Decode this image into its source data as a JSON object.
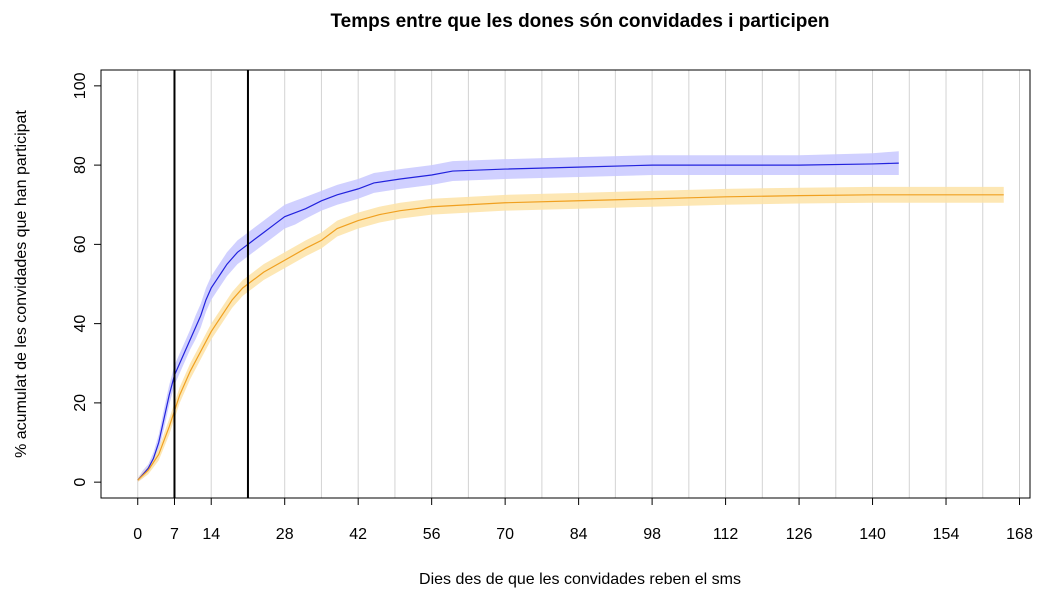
{
  "chart_data": {
    "type": "line",
    "title": "Temps entre que les dones són convidades i participen",
    "x_label": "Dies des de que les convidades reben el sms",
    "y_label": "% acumulat de les convidades que han participat",
    "xlim": [
      -7,
      170
    ],
    "ylim": [
      -4,
      104
    ],
    "xticks": [
      0,
      7,
      14,
      28,
      42,
      56,
      70,
      84,
      98,
      112,
      126,
      140,
      154,
      168
    ],
    "yticks": [
      0,
      20,
      40,
      60,
      80,
      100
    ],
    "xgrid": [
      0,
      7,
      14,
      21,
      28,
      35,
      42,
      49,
      56,
      63,
      70,
      77,
      84,
      91,
      98,
      105,
      112,
      119,
      126,
      133,
      140,
      147,
      154,
      161,
      168
    ],
    "vlines": [
      7,
      21
    ],
    "vline_color": "#000000",
    "grid_color": "#d3d3d3",
    "series": [
      {
        "color": "#2222dd",
        "band_color": "#c8c8ff",
        "x": [
          0,
          1,
          2,
          3,
          4,
          5,
          6,
          7,
          8,
          9,
          10,
          11,
          12,
          13,
          14,
          15,
          16,
          17,
          18,
          19,
          20,
          21,
          22,
          24,
          26,
          28,
          30,
          32,
          35,
          38,
          42,
          45,
          50,
          56,
          60,
          70,
          84,
          98,
          112,
          126,
          140,
          145
        ],
        "values": [
          0.5,
          2,
          3.5,
          6,
          10,
          16,
          22,
          27,
          30,
          33,
          36,
          39,
          42,
          46,
          49,
          51,
          53,
          55,
          56.5,
          58,
          59,
          60,
          61,
          63,
          65,
          67,
          68,
          69,
          71,
          72.5,
          74,
          75.5,
          76.5,
          77.5,
          78.5,
          79,
          79.5,
          80,
          80,
          80,
          80.3,
          80.5
        ],
        "lower": [
          0,
          1,
          2.5,
          4.5,
          8,
          13.5,
          19.5,
          24.5,
          27.5,
          30.5,
          33.5,
          36,
          39,
          43,
          46,
          48,
          50,
          52,
          53.5,
          55,
          56,
          57,
          58,
          60,
          62,
          64,
          65,
          66.5,
          68.5,
          70,
          71.5,
          73,
          74,
          75,
          76,
          76.5,
          77,
          77.5,
          77.5,
          77.5,
          77.5,
          77.5
        ],
        "upper": [
          1,
          3,
          4.5,
          7.5,
          12,
          18.5,
          24.5,
          29.5,
          32.5,
          35.5,
          38.5,
          42,
          45,
          49,
          52,
          54,
          56,
          58,
          59.5,
          61,
          62,
          63,
          64,
          66,
          68,
          70,
          71,
          72,
          73.5,
          75,
          76.5,
          78,
          79,
          80,
          81,
          81.5,
          82,
          82.5,
          82.5,
          82.5,
          83,
          83.5
        ]
      },
      {
        "color": "#f0a020",
        "band_color": "#fde3a7",
        "x": [
          0,
          2,
          4,
          6,
          7,
          8,
          10,
          12,
          14,
          16,
          18,
          20,
          21,
          24,
          28,
          32,
          35,
          38,
          42,
          46,
          50,
          56,
          63,
          70,
          84,
          98,
          112,
          126,
          140,
          165
        ],
        "values": [
          0.5,
          3,
          7,
          14,
          18,
          22,
          28,
          33,
          38,
          42,
          46,
          49,
          50,
          53,
          56,
          59,
          61,
          64,
          66,
          67.5,
          68.5,
          69.5,
          70,
          70.5,
          71,
          71.5,
          72,
          72.3,
          72.5,
          72.5
        ],
        "lower": [
          0,
          2,
          5.5,
          12,
          16,
          20,
          26,
          31,
          36,
          40,
          44,
          47,
          48,
          51,
          54,
          57,
          59,
          62,
          64,
          65.5,
          66.5,
          67.5,
          68,
          68.5,
          69,
          69.5,
          70,
          70.3,
          70.5,
          70.5
        ],
        "upper": [
          1,
          4,
          8.5,
          16,
          20,
          24,
          30,
          35,
          40,
          44,
          48,
          51,
          52,
          55,
          58,
          61,
          63,
          66,
          68,
          69.5,
          70.5,
          71.5,
          72,
          72.5,
          73,
          73.5,
          74,
          74.3,
          74.5,
          74.5
        ]
      }
    ]
  }
}
